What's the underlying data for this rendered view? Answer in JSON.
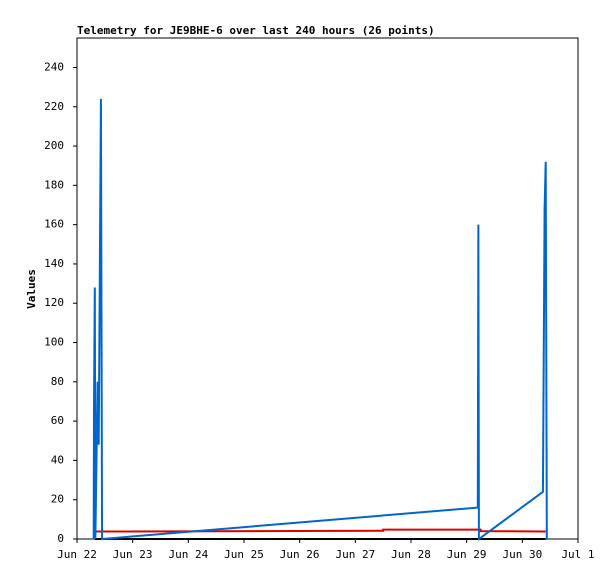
{
  "chart_data": {
    "type": "line",
    "title": "Telemetry for JE9BHE-6 over last 240 hours (26 points)",
    "y_label": "Values",
    "xlim": [
      0,
      9
    ],
    "ylim": [
      0,
      255
    ],
    "xticks": [
      {
        "value": 0,
        "label": "Jun 22"
      },
      {
        "value": 1,
        "label": "Jun 23"
      },
      {
        "value": 2,
        "label": "Jun 24"
      },
      {
        "value": 3,
        "label": "Jun 25"
      },
      {
        "value": 4,
        "label": "Jun 26"
      },
      {
        "value": 5,
        "label": "Jun 27"
      },
      {
        "value": 6,
        "label": "Jun 28"
      },
      {
        "value": 7,
        "label": "Jun 29"
      },
      {
        "value": 8,
        "label": "Jun 30"
      },
      {
        "value": 9,
        "label": "Jul 1"
      }
    ],
    "yticks": [
      0,
      20,
      40,
      60,
      80,
      100,
      120,
      140,
      160,
      180,
      200,
      220,
      240
    ],
    "series": [
      {
        "color": "#000000",
        "x": [
          0.32,
          8.42
        ],
        "values": [
          0,
          0
        ]
      },
      {
        "color": "#dd0000",
        "x": [
          0.32,
          5.5,
          5.5,
          7.25,
          7.25,
          8.42
        ],
        "values": [
          3.8,
          4.2,
          4.8,
          4.8,
          4,
          3.8
        ]
      },
      {
        "color": "#0066cc",
        "x": [
          0.3,
          0.305,
          0.32,
          0.33,
          0.37,
          0.39,
          0.43,
          0.45,
          7.2,
          7.21,
          7.22,
          8.37,
          8.38,
          8.39,
          8.4,
          8.42,
          8.44
        ],
        "values": [
          0,
          64,
          128,
          0,
          80,
          48,
          224,
          0,
          16,
          160,
          0,
          24,
          72,
          120,
          168,
          192,
          0
        ]
      }
    ]
  }
}
